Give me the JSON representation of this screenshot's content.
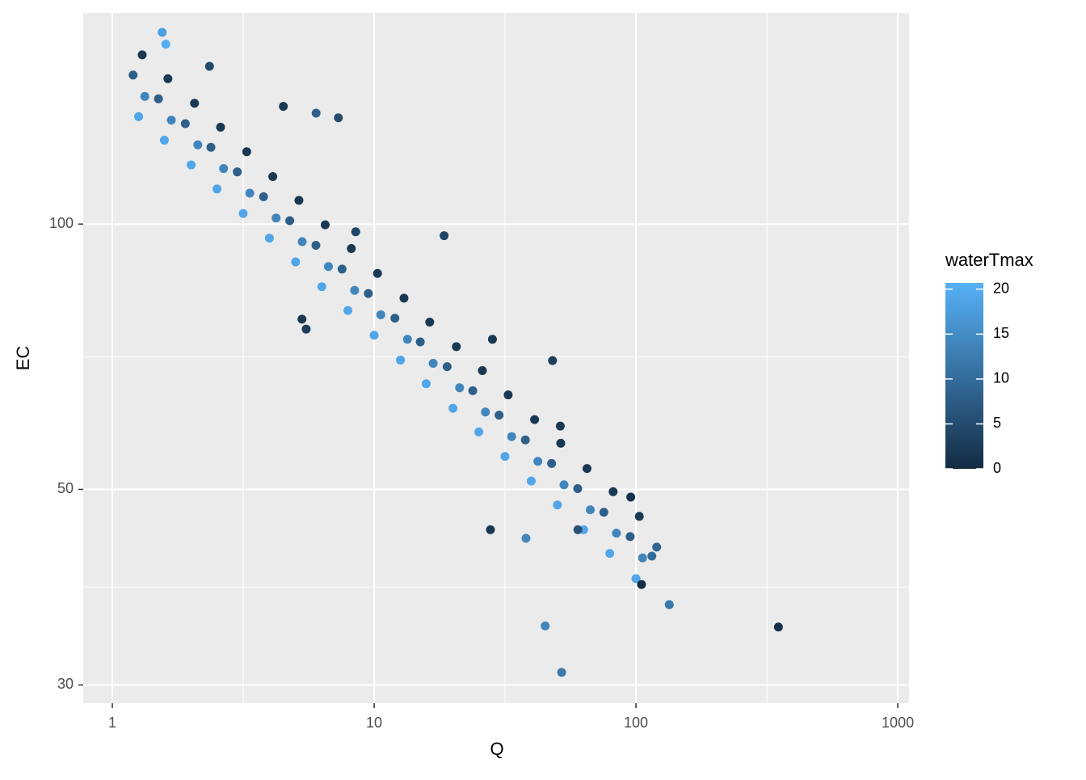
{
  "chart_data": {
    "type": "scatter",
    "x_label": "Q",
    "y_label": "EC",
    "log_x": true,
    "log_y": true,
    "xlim": [
      0.774,
      1104
    ],
    "ylim": [
      28.6,
      173.6
    ],
    "xticks": [
      1,
      10,
      100,
      1000
    ],
    "yticks": [
      30,
      50,
      100
    ],
    "grid": true,
    "color_title": "waterTmax",
    "color_low": "#132B43",
    "color_high": "#56B1F7",
    "color_lim": [
      0,
      20.7
    ],
    "color_ticks": [
      0,
      5,
      10,
      15,
      20
    ],
    "x": [
      1.26,
      1.33,
      1.2,
      1.3,
      1.58,
      1.68,
      1.5,
      1.63,
      2.0,
      2.12,
      1.9,
      2.06,
      2.51,
      2.66,
      2.38,
      2.59,
      3.16,
      3.35,
      3.0,
      3.26,
      3.98,
      4.22,
      3.78,
      4.1,
      5.01,
      5.31,
      4.76,
      5.16,
      6.31,
      6.69,
      5.99,
      6.5,
      7.94,
      8.42,
      7.54,
      8.18,
      10.0,
      10.6,
      9.5,
      10.3,
      12.6,
      13.4,
      12.0,
      13.0,
      15.8,
      16.8,
      15.0,
      16.3,
      20.0,
      21.2,
      19.0,
      20.6,
      25.1,
      26.6,
      23.8,
      25.9,
      31.6,
      33.5,
      30.0,
      32.5,
      39.8,
      42.2,
      37.8,
      41.0,
      50.1,
      53.1,
      47.6,
      51.6,
      63.1,
      66.9,
      59.9,
      65.0,
      79.4,
      84.2,
      75.4,
      81.8,
      100.0,
      106.0,
      95.0,
      103.0,
      350,
      52,
      45,
      134,
      48,
      18.5,
      6.0,
      7.3,
      4.5,
      2.35,
      28.3,
      51.4,
      27.8,
      95.5,
      105,
      1.6,
      1.55,
      5.3,
      5.5,
      8.5,
      120,
      115,
      38,
      60
    ],
    "y": [
      132.4,
      139.6,
      147.6,
      155.6,
      124.5,
      131.2,
      138.7,
      146.2,
      116.7,
      123.0,
      130.0,
      137.1,
      109.6,
      115.6,
      122.2,
      128.8,
      102.8,
      108.4,
      114.6,
      120.8,
      96.4,
      101.6,
      107.4,
      113.2,
      90.6,
      95.5,
      100.9,
      106.4,
      84.9,
      89.5,
      94.6,
      99.8,
      79.8,
      84.1,
      88.9,
      93.8,
      74.8,
      78.9,
      83.4,
      87.9,
      70.1,
      74.0,
      78.2,
      82.4,
      65.9,
      69.5,
      73.5,
      77.4,
      61.8,
      65.2,
      68.9,
      72.6,
      58.1,
      61.2,
      64.7,
      68.2,
      54.5,
      57.4,
      60.7,
      64.0,
      51.1,
      53.8,
      56.9,
      60.0,
      48.0,
      50.6,
      53.5,
      56.4,
      45.0,
      47.4,
      50.1,
      52.8,
      42.3,
      44.6,
      47.1,
      49.7,
      39.6,
      41.8,
      44.2,
      46.6,
      34.9,
      31.0,
      35.0,
      37.0,
      70,
      97,
      133.6,
      132,
      136,
      151,
      74,
      59,
      45,
      49,
      39,
      160,
      165,
      78,
      76,
      98,
      43,
      42,
      44,
      45
    ],
    "waterTmax": [
      19,
      14,
      8,
      2,
      19,
      14,
      8,
      2,
      19,
      14,
      8,
      2,
      19,
      14,
      8,
      2,
      19,
      14,
      8,
      2,
      19,
      14,
      8,
      2,
      19,
      14,
      8,
      2,
      19,
      14,
      8,
      2,
      19,
      14,
      8,
      2,
      19,
      14,
      8,
      2,
      19,
      14,
      8,
      2,
      19,
      14,
      8,
      2,
      19,
      14,
      8,
      2,
      19,
      14,
      8,
      2,
      19,
      14,
      8,
      2,
      19,
      14,
      8,
      2,
      19,
      14,
      8,
      2,
      19,
      14,
      8,
      2,
      19,
      14,
      8,
      2,
      19,
      14,
      8,
      2,
      1,
      12,
      14,
      12,
      3,
      4,
      8,
      5,
      2,
      5,
      2,
      2,
      2,
      1,
      0,
      20,
      18,
      2,
      3,
      4,
      9,
      10,
      14,
      6
    ]
  }
}
